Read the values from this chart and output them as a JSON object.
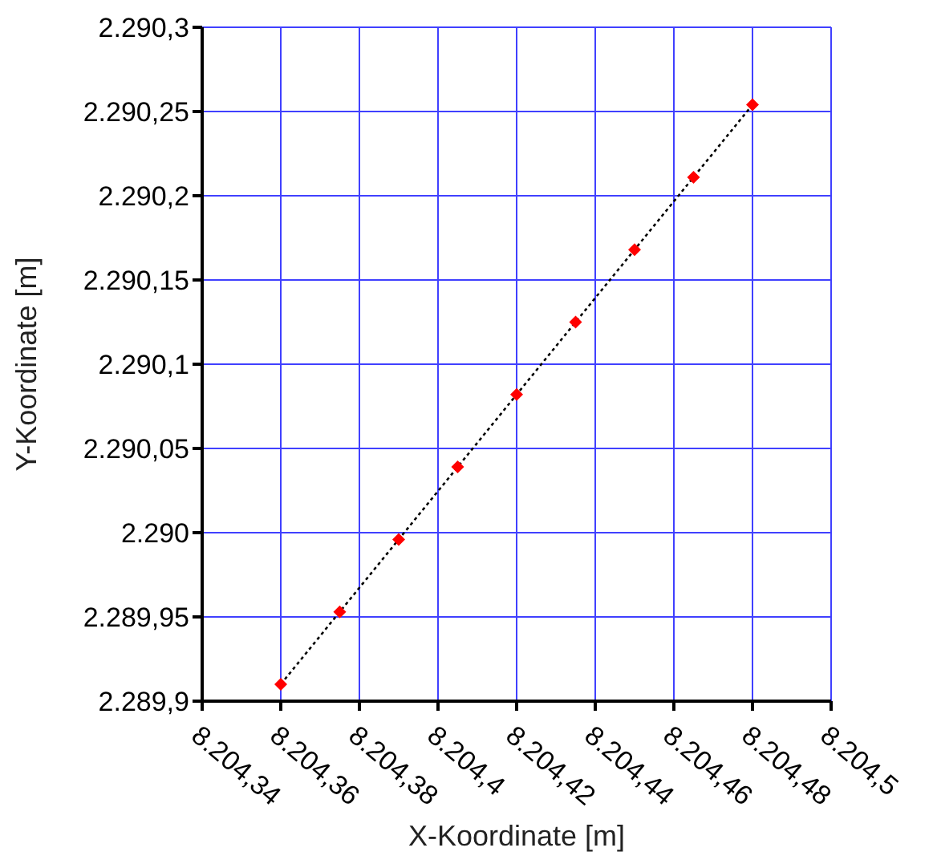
{
  "chart_data": {
    "type": "line",
    "xlabel": "X-Koordinate [m]",
    "ylabel": "Y-Koordinate [m]",
    "x": [
      8204.36,
      8204.375,
      8204.39,
      8204.405,
      8204.42,
      8204.435,
      8204.45,
      8204.465,
      8204.48
    ],
    "series": [
      {
        "color": "#000000",
        "line_style": "dotted",
        "marker": "none",
        "values": [
          2289.91,
          2289.953,
          2289.996,
          2290.039,
          2290.082,
          2290.125,
          2290.168,
          2290.211,
          2290.254
        ]
      },
      {
        "type": "scatter",
        "color": "#ff0000",
        "marker": "diamond",
        "values": [
          2289.91,
          2289.953,
          2289.996,
          2290.039,
          2290.082,
          2290.125,
          2290.168,
          2290.211,
          2290.254
        ]
      }
    ],
    "xlim": [
      8204.34,
      8204.5
    ],
    "xticks": [
      {
        "value": 8204.34,
        "label": "8.204,34"
      },
      {
        "value": 8204.36,
        "label": "8.204,36"
      },
      {
        "value": 8204.38,
        "label": "8.204,38"
      },
      {
        "value": 8204.4,
        "label": "8.204,4"
      },
      {
        "value": 8204.42,
        "label": "8.204,42"
      },
      {
        "value": 8204.44,
        "label": "8.204,44"
      },
      {
        "value": 8204.46,
        "label": "8.204,46"
      },
      {
        "value": 8204.48,
        "label": "8.204,48"
      },
      {
        "value": 8204.5,
        "label": "8.204,5"
      }
    ],
    "ylim": [
      2289.9,
      2290.3
    ],
    "yticks": [
      {
        "value": 2289.9,
        "label": "2.289,9"
      },
      {
        "value": 2289.95,
        "label": "2.289,95"
      },
      {
        "value": 2290,
        "label": "2.290"
      },
      {
        "value": 2290.05,
        "label": "2.290,05"
      },
      {
        "value": 2290.1,
        "label": "2.290,1"
      },
      {
        "value": 2290.15,
        "label": "2.290,15"
      },
      {
        "value": 2290.2,
        "label": "2.290,2"
      },
      {
        "value": 2290.25,
        "label": "2.290,25"
      },
      {
        "value": 2290.3,
        "label": "2.290,3"
      }
    ],
    "grid": true
  }
}
